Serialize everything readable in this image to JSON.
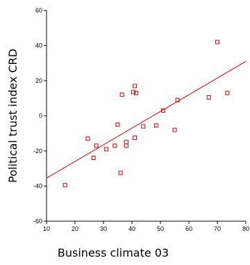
{
  "chart_data": {
    "type": "scatter",
    "title": "",
    "xlabel": "Business climate 03",
    "ylabel": "Political trust index CRD",
    "xlim": [
      10,
      80
    ],
    "ylim": [
      -60,
      60
    ],
    "xticks": [
      10,
      20,
      30,
      40,
      50,
      60,
      70,
      80
    ],
    "yticks": [
      -60,
      -40,
      -20,
      0,
      20,
      40,
      60
    ],
    "colors": {
      "points": "#cc0000",
      "fit_line": "#cc0000",
      "axes": "#000000"
    },
    "marker": "open-square",
    "grid": false,
    "legend": "none",
    "points": [
      {
        "x": 16.5,
        "y": -39.5
      },
      {
        "x": 24.5,
        "y": -13
      },
      {
        "x": 26.5,
        "y": -24
      },
      {
        "x": 27.5,
        "y": -17
      },
      {
        "x": 31,
        "y": -19
      },
      {
        "x": 34,
        "y": -17
      },
      {
        "x": 35,
        "y": -5
      },
      {
        "x": 36,
        "y": -32.5
      },
      {
        "x": 36.5,
        "y": 12
      },
      {
        "x": 38,
        "y": -17
      },
      {
        "x": 38,
        "y": -15
      },
      {
        "x": 40.5,
        "y": 13.5
      },
      {
        "x": 41,
        "y": 17
      },
      {
        "x": 41,
        "y": -12.5
      },
      {
        "x": 41.5,
        "y": 13
      },
      {
        "x": 44,
        "y": -6
      },
      {
        "x": 48.5,
        "y": -5.5
      },
      {
        "x": 51,
        "y": 3
      },
      {
        "x": 55,
        "y": -8
      },
      {
        "x": 56,
        "y": 9
      },
      {
        "x": 67,
        "y": 10.5
      },
      {
        "x": 70,
        "y": 42
      },
      {
        "x": 73.5,
        "y": 13
      }
    ],
    "fit_line": {
      "x": [
        10,
        80
      ],
      "y": [
        -35.5,
        31
      ]
    }
  }
}
